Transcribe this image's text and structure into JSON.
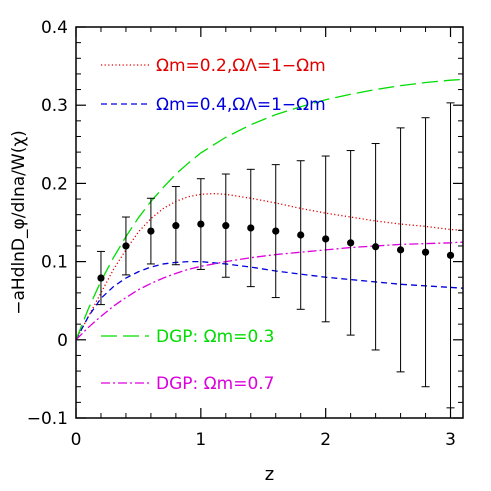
{
  "chart_data": {
    "type": "line",
    "xlabel": "z",
    "ylabel": "−aHdlnD_φ/dlna/W(χ)",
    "xlim": [
      0,
      3.1
    ],
    "ylim": [
      -0.1,
      0.4
    ],
    "x_ticks": [
      0,
      1,
      2,
      3
    ],
    "x_tick_labels": [
      "0",
      "1",
      "2",
      "3"
    ],
    "y_ticks": [
      -0.1,
      0,
      0.1,
      0.2,
      0.3,
      0.4
    ],
    "y_tick_labels": [
      "−0.1",
      "0",
      "0.1",
      "0.2",
      "0.3",
      "0.4"
    ],
    "grid": false,
    "legend_placement": "inside, top-left and bottom-left",
    "series": [
      {
        "name": "Ωm=0.2,ΩΛ=1−Ωm",
        "color": "#e00000",
        "style": "dotted",
        "x": [
          0,
          0.1,
          0.2,
          0.3,
          0.4,
          0.5,
          0.6,
          0.7,
          0.8,
          0.9,
          1.0,
          1.1,
          1.2,
          1.4,
          1.6,
          1.8,
          2.0,
          2.2,
          2.4,
          2.6,
          2.8,
          3.0,
          3.1
        ],
        "y": [
          0,
          0.03,
          0.06,
          0.09,
          0.115,
          0.138,
          0.155,
          0.168,
          0.177,
          0.183,
          0.186,
          0.187,
          0.186,
          0.181,
          0.175,
          0.168,
          0.162,
          0.157,
          0.152,
          0.148,
          0.145,
          0.141,
          0.14
        ]
      },
      {
        "name": "Ωm=0.4,ΩΛ=1−Ωm",
        "color": "#0000dd",
        "style": "dashed",
        "x": [
          0,
          0.1,
          0.2,
          0.3,
          0.4,
          0.5,
          0.6,
          0.7,
          0.8,
          0.9,
          1.0,
          1.2,
          1.4,
          1.6,
          1.8,
          2.0,
          2.2,
          2.4,
          2.6,
          2.8,
          3.0,
          3.1
        ],
        "y": [
          0,
          0.03,
          0.053,
          0.068,
          0.079,
          0.087,
          0.093,
          0.097,
          0.099,
          0.1,
          0.1,
          0.097,
          0.093,
          0.088,
          0.084,
          0.08,
          0.077,
          0.074,
          0.071,
          0.069,
          0.067,
          0.066
        ]
      },
      {
        "name": "DGP: Ωm=0.3",
        "color": "#00dd00",
        "style": "long-dash",
        "x": [
          0,
          0.1,
          0.2,
          0.3,
          0.4,
          0.5,
          0.6,
          0.7,
          0.8,
          0.9,
          1.0,
          1.2,
          1.4,
          1.6,
          1.8,
          2.0,
          2.2,
          2.4,
          2.6,
          2.8,
          3.0,
          3.1
        ],
        "y": [
          0,
          0.04,
          0.075,
          0.105,
          0.132,
          0.156,
          0.177,
          0.195,
          0.212,
          0.226,
          0.239,
          0.259,
          0.275,
          0.288,
          0.298,
          0.307,
          0.314,
          0.32,
          0.325,
          0.329,
          0.332,
          0.333
        ]
      },
      {
        "name": "DGP: Ωm=0.7",
        "color": "#dd00dd",
        "style": "dash-dot",
        "x": [
          0,
          0.1,
          0.2,
          0.3,
          0.4,
          0.5,
          0.6,
          0.7,
          0.8,
          0.9,
          1.0,
          1.2,
          1.4,
          1.6,
          1.8,
          2.0,
          2.2,
          2.4,
          2.6,
          2.8,
          3.0,
          3.1
        ],
        "y": [
          0,
          0.016,
          0.03,
          0.043,
          0.054,
          0.064,
          0.072,
          0.079,
          0.085,
          0.09,
          0.094,
          0.1,
          0.105,
          0.109,
          0.112,
          0.115,
          0.118,
          0.12,
          0.122,
          0.123,
          0.124,
          0.125
        ]
      }
    ],
    "data_points": {
      "x": [
        0.2,
        0.4,
        0.6,
        0.8,
        1.0,
        1.2,
        1.4,
        1.6,
        1.8,
        2.0,
        2.2,
        2.4,
        2.6,
        2.8,
        3.0
      ],
      "y": [
        0.079,
        0.12,
        0.139,
        0.146,
        0.148,
        0.146,
        0.143,
        0.139,
        0.134,
        0.129,
        0.124,
        0.119,
        0.115,
        0.112,
        0.108
      ],
      "err": [
        0.034,
        0.037,
        0.042,
        0.05,
        0.058,
        0.066,
        0.075,
        0.085,
        0.095,
        0.106,
        0.118,
        0.132,
        0.156,
        0.172,
        0.195
      ],
      "color": "#000000"
    }
  }
}
